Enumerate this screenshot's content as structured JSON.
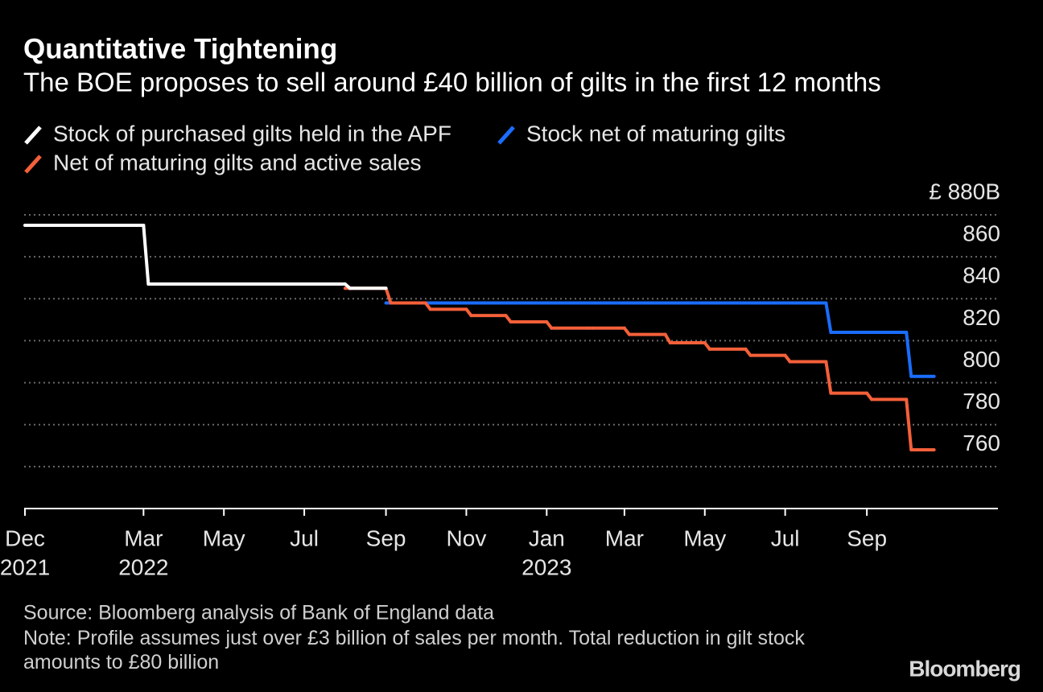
{
  "chart_data": {
    "type": "line",
    "title": "Quantitative Tightening",
    "subtitle": "The BOE proposes to sell around £40 billion of gilts in the first 12 months",
    "x": [
      "2021-12",
      "2022-01",
      "2022-02",
      "2022-03",
      "2022-04",
      "2022-05",
      "2022-06",
      "2022-07",
      "2022-08",
      "2022-09",
      "2022-10",
      "2022-11",
      "2022-12",
      "2023-01",
      "2023-02",
      "2023-03",
      "2023-04",
      "2023-05",
      "2023-06",
      "2023-07",
      "2023-08",
      "2023-09",
      "2023-10"
    ],
    "series": [
      {
        "name": "Stock of purchased gilts held in the APF",
        "color": "#ffffff",
        "values": [
          875,
          875,
          875,
          847,
          847,
          847,
          847,
          847,
          845,
          null,
          null,
          null,
          null,
          null,
          null,
          null,
          null,
          null,
          null,
          null,
          null,
          null,
          null
        ]
      },
      {
        "name": "Stock net of maturing gilts",
        "color": "#1a6dff",
        "values": [
          null,
          null,
          null,
          null,
          null,
          null,
          null,
          null,
          null,
          838,
          838,
          838,
          838,
          838,
          838,
          838,
          838,
          838,
          838,
          838,
          824,
          824,
          803
        ]
      },
      {
        "name": "Net of maturing gilts and active sales",
        "color": "#f4603a",
        "values": [
          null,
          null,
          null,
          null,
          null,
          null,
          null,
          null,
          845,
          838,
          835,
          832,
          829,
          826,
          826,
          823,
          819,
          816,
          813,
          810,
          795,
          792,
          768
        ]
      }
    ],
    "xlim": [
      "2021-12",
      "2023-11"
    ],
    "xticks": [
      {
        "value": "2021-12",
        "label": "Dec"
      },
      {
        "value": "2022-03",
        "label": "Mar"
      },
      {
        "value": "2022-05",
        "label": "May"
      },
      {
        "value": "2022-07",
        "label": "Jul"
      },
      {
        "value": "2022-09",
        "label": "Sep"
      },
      {
        "value": "2022-11",
        "label": "Nov"
      },
      {
        "value": "2023-01",
        "label": "Jan"
      },
      {
        "value": "2023-03",
        "label": "Mar"
      },
      {
        "value": "2023-05",
        "label": "May"
      },
      {
        "value": "2023-07",
        "label": "Jul"
      },
      {
        "value": "2023-09",
        "label": "Sep"
      }
    ],
    "xtick_years": [
      {
        "value": "2021-12",
        "label": "2021"
      },
      {
        "value": "2022-03",
        "label": "2022"
      },
      {
        "value": "2023-01",
        "label": "2023"
      }
    ],
    "ylim": [
      740,
      880
    ],
    "yticks": [
      760,
      780,
      800,
      820,
      840,
      860,
      {
        "value": 880,
        "label": "£ 880B"
      }
    ],
    "grid": true,
    "source": "Source: Bloomberg analysis of Bank of England data",
    "note": "Note: Profile assumes just over £3 billion of sales per month. Total reduction in gilt stock amounts to £80 billion",
    "brand": "Bloomberg"
  }
}
